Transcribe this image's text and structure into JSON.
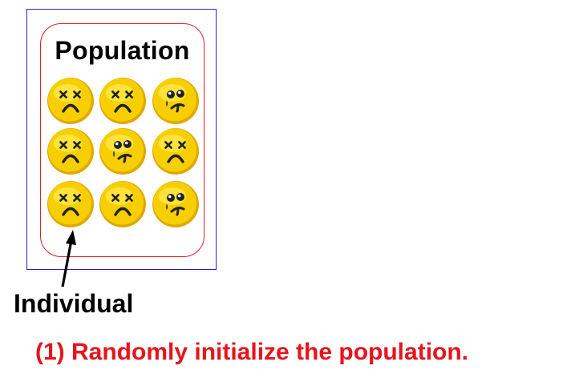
{
  "diagram": {
    "population_label": "Population",
    "individual_label": "Individual",
    "caption": "(1) Randomly initialize the population.",
    "colors": {
      "outer_frame": "#2a1fd0",
      "population_box": "#e0202a",
      "caption": "#e8141c",
      "face_fill": "#f7cf00",
      "face_highlight": "#ffe94d",
      "face_shadow": "#e0a800",
      "face_features": "#222222"
    },
    "grid": {
      "rows": 3,
      "columns": 3,
      "faces": [
        [
          "dizzy",
          "dizzy",
          "confused"
        ],
        [
          "dizzy",
          "confused",
          "dizzy"
        ],
        [
          "dizzy",
          "dizzy",
          "confused"
        ]
      ]
    },
    "arrow_points_to": "row-3-col-1 individual"
  }
}
